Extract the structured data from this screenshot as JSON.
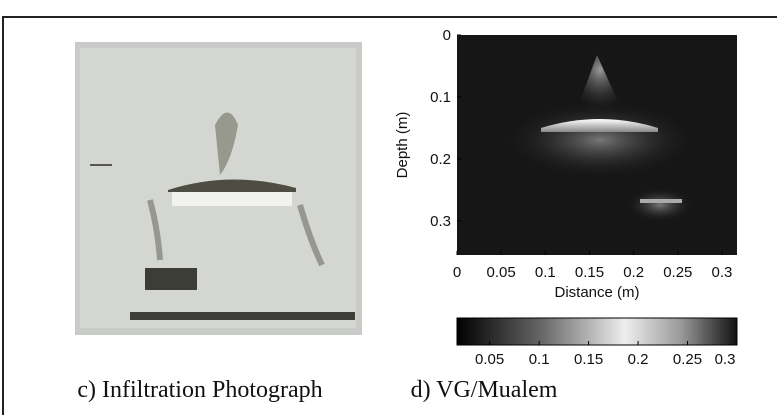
{
  "figure": {
    "panel_c": {
      "caption": "c) Infiltration Photograph"
    },
    "panel_d": {
      "caption": "d) VG/Mualem",
      "x_label": "Distance (m)",
      "y_label": "Depth (m)",
      "xlim": [
        0,
        0.317
      ],
      "ylim": [
        0,
        0.355
      ],
      "xticks": [
        0,
        0.05,
        0.1,
        0.15,
        0.2,
        0.25,
        0.3
      ],
      "yticks": [
        0,
        0.1,
        0.2,
        0.3
      ],
      "colorbar": {
        "lim": [
          0.017,
          0.3
        ],
        "ticks": [
          0.05,
          0.1,
          0.15,
          0.2,
          0.25,
          0.3
        ]
      }
    }
  }
}
